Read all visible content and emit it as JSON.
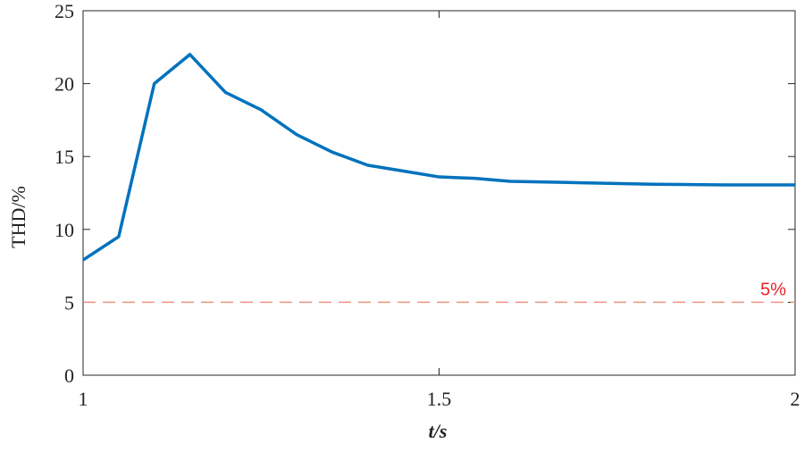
{
  "chart_data": {
    "type": "line",
    "xlabel": "t/s",
    "ylabel": "THD/%",
    "x": [
      1.0,
      1.05,
      1.1,
      1.15,
      1.2,
      1.25,
      1.3,
      1.35,
      1.4,
      1.45,
      1.5,
      1.55,
      1.6,
      1.7,
      1.8,
      1.9,
      2.0
    ],
    "series": [
      {
        "color": "#0072bd",
        "values": [
          7.9,
          9.5,
          20.0,
          22.0,
          19.4,
          18.2,
          16.5,
          15.3,
          14.4,
          14.0,
          13.6,
          13.5,
          13.3,
          13.2,
          13.1,
          13.05,
          13.05
        ]
      }
    ],
    "reference_line": {
      "value": 5,
      "label": "5%",
      "color": "#e8957f",
      "label_color": "#e8222a"
    },
    "xlim": [
      1,
      2
    ],
    "xticks": [
      1,
      1.5,
      2
    ],
    "ylim": [
      0,
      25
    ],
    "yticks": [
      0,
      5,
      10,
      15,
      20,
      25
    ]
  }
}
